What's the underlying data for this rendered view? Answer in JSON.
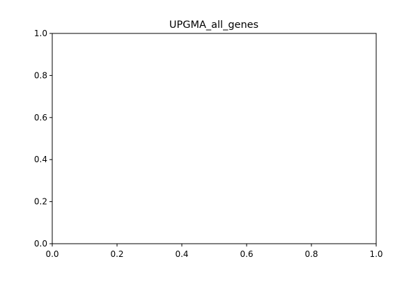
{
  "chart_data": {
    "type": "scatter",
    "title": "UPGMA_all_genes",
    "xlabel": "",
    "ylabel": "",
    "xlim": [
      0.0,
      1.0
    ],
    "ylim": [
      0.0,
      1.0
    ],
    "x_ticks": [
      0.0,
      0.2,
      0.4,
      0.6,
      0.8,
      1.0
    ],
    "y_ticks": [
      0.0,
      0.2,
      0.4,
      0.6,
      0.8,
      1.0
    ],
    "x_tick_labels": [
      "0.0",
      "0.2",
      "0.4",
      "0.6",
      "0.8",
      "1.0"
    ],
    "y_tick_labels": [
      "0.0",
      "0.2",
      "0.4",
      "0.6",
      "0.8",
      "1.0"
    ],
    "grid": false,
    "series": []
  }
}
